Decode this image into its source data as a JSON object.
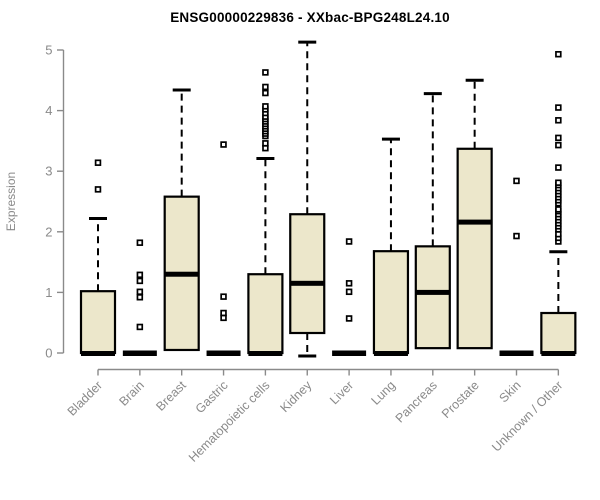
{
  "chart_data": {
    "type": "boxplot",
    "title": "ENSG00000229836 - XXbac-BPG248L24.10",
    "xlabel": "",
    "ylabel": "Expression",
    "ylim": [
      0,
      5
    ],
    "yticks": [
      0,
      1,
      2,
      3,
      4,
      5
    ],
    "legend": "none",
    "grid": false,
    "categories": [
      "Bladder",
      "Brain",
      "Breast",
      "Gastric",
      "Hematopoietic cells",
      "Kidney",
      "Liver",
      "Lung",
      "Pancreas",
      "Prostate",
      "Skin",
      "Unknown / Other"
    ],
    "boxes": [
      {
        "category": "Bladder",
        "whisker_low": 0,
        "q1": 0,
        "median": 0,
        "q3": 1.02,
        "whisker_high": 2.22,
        "outliers": [
          2.7,
          3.14
        ]
      },
      {
        "category": "Brain",
        "whisker_low": 0,
        "q1": 0,
        "median": 0,
        "q3": 0,
        "whisker_high": 0,
        "outliers": [
          0.43,
          0.92,
          1.01,
          1.19,
          1.29,
          1.82
        ]
      },
      {
        "category": "Breast",
        "whisker_low": 0,
        "q1": 0.05,
        "median": 1.3,
        "q3": 2.58,
        "whisker_high": 4.34,
        "outliers": []
      },
      {
        "category": "Gastric",
        "whisker_low": 0,
        "q1": 0,
        "median": 0,
        "q3": 0,
        "whisker_high": 0,
        "outliers": [
          0.58,
          0.66,
          0.93,
          3.44
        ]
      },
      {
        "category": "Hematopoietic cells",
        "whisker_low": 0,
        "q1": 0,
        "median": 0,
        "q3": 1.3,
        "whisker_high": 3.21,
        "outliers": [
          3.38,
          3.46,
          3.58,
          3.62,
          3.66,
          3.7,
          3.74,
          3.78,
          3.82,
          3.86,
          3.9,
          3.96,
          4.02,
          4.07,
          4.29,
          4.39,
          4.63
        ]
      },
      {
        "category": "Kidney",
        "whisker_low": 0,
        "q1": 0.33,
        "median": 1.15,
        "q3": 2.29,
        "whisker_high": 5.13,
        "outliers": []
      },
      {
        "category": "Liver",
        "whisker_low": 0,
        "q1": 0,
        "median": 0,
        "q3": 0,
        "whisker_high": 0,
        "outliers": [
          0.57,
          1.01,
          1.15,
          1.84
        ]
      },
      {
        "category": "Lung",
        "whisker_low": 0,
        "q1": 0,
        "median": 0,
        "q3": 1.68,
        "whisker_high": 3.53,
        "outliers": []
      },
      {
        "category": "Pancreas",
        "whisker_low": 0,
        "q1": 0.08,
        "median": 1.0,
        "q3": 1.76,
        "whisker_high": 4.28,
        "outliers": []
      },
      {
        "category": "Prostate",
        "whisker_low": 0,
        "q1": 0.08,
        "median": 2.16,
        "q3": 3.37,
        "whisker_high": 4.5,
        "outliers": []
      },
      {
        "category": "Skin",
        "whisker_low": 0,
        "q1": 0,
        "median": 0,
        "q3": 0,
        "whisker_high": 0,
        "outliers": [
          1.93,
          2.84
        ]
      },
      {
        "category": "Unknown / Other",
        "whisker_low": 0,
        "q1": 0,
        "median": 0,
        "q3": 0.66,
        "whisker_high": 1.67,
        "outliers": [
          1.84,
          1.9,
          1.96,
          2.04,
          2.09,
          2.14,
          2.19,
          2.24,
          2.29,
          2.34,
          2.37,
          2.47,
          2.52,
          2.57,
          2.62,
          2.67,
          2.72,
          2.77,
          2.81,
          3.06,
          3.43,
          3.55,
          3.84,
          4.05,
          4.93
        ]
      }
    ],
    "colors": {
      "box_fill": "#ECE7CB",
      "box_stroke": "#000000",
      "median_color": "#000000",
      "whisker_color": "#000000",
      "outlier_stroke": "#000000",
      "axis_color": "#8a8a8a",
      "tick_label_color": "#8a8a8a",
      "title_color": "#000000",
      "background": "#ffffff"
    }
  }
}
